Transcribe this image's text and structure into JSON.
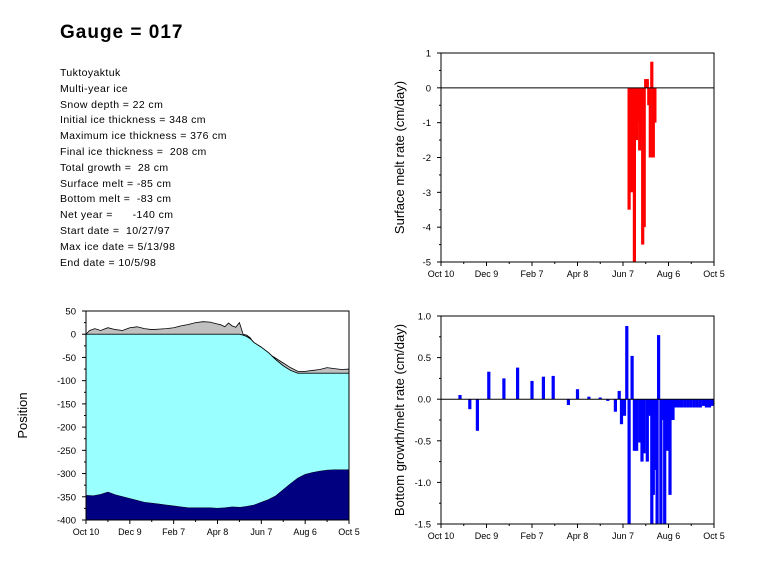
{
  "title": "Gauge = 017",
  "info_lines": [
    "Tuktoyaktuk",
    "Multi-year ice",
    "Snow depth = 22 cm",
    "Initial ice thickness = 348 cm",
    "Maximum ice thickness = 376 cm",
    "Final ice thickness =  208 cm",
    "Total growth =  28 cm",
    "Surface melt = -85 cm",
    "Bottom melt =  -83 cm",
    "Net year =      -140 cm",
    "Start date =  10/27/97",
    "Max ice date = 5/13/98",
    "End date = 10/5/98"
  ],
  "colors": {
    "snow": "#c0c0c0",
    "ice": "#99ffff",
    "water": "#000080",
    "surface_melt": "#ff0000",
    "bottom_rate": "#0000ff"
  },
  "chart_data": [
    {
      "type": "area",
      "ylabel": "Position",
      "xlabel": "",
      "x_ticks": [
        "Oct 10",
        "Dec 9",
        "Feb 7",
        "Apr 8",
        "Jun 7",
        "Aug 6",
        "Oct 5"
      ],
      "x_range": [
        0,
        360
      ],
      "ylim": [
        -400,
        50
      ],
      "y_ticks": [
        "50",
        "0",
        "-50",
        "-100",
        "-150",
        "-200",
        "-250",
        "-300",
        "-350",
        "-400"
      ],
      "series": [
        {
          "role": "snow_surface",
          "x": [
            0,
            5,
            12,
            20,
            30,
            40,
            50,
            60,
            70,
            80,
            90,
            100,
            110,
            120,
            130,
            140,
            150,
            160,
            170,
            175,
            180,
            185,
            190,
            195,
            200,
            205,
            210,
            215,
            220,
            225,
            230,
            240,
            250,
            260,
            270,
            280,
            290,
            300,
            310,
            320,
            330,
            340,
            350,
            360
          ],
          "y": [
            0,
            8,
            12,
            8,
            14,
            10,
            8,
            14,
            16,
            12,
            10,
            11,
            12,
            14,
            18,
            21,
            25,
            27,
            26,
            24,
            22,
            20,
            16,
            24,
            18,
            15,
            25,
            0,
            -2,
            -8,
            -20,
            -30,
            -42,
            -52,
            -62,
            -72,
            -80,
            -80,
            -78,
            -76,
            -72,
            -74,
            -76,
            -75
          ]
        },
        {
          "role": "ice_top",
          "x": [
            0,
            180,
            200,
            210,
            215,
            220,
            225,
            230,
            240,
            250,
            260,
            270,
            280,
            290,
            300,
            310,
            320,
            330,
            340,
            350,
            360
          ],
          "y": [
            0,
            0,
            0,
            0,
            -2,
            -5,
            -10,
            -18,
            -28,
            -40,
            -55,
            -68,
            -78,
            -84,
            -84,
            -84,
            -84,
            -84,
            -84,
            -84,
            -84
          ]
        },
        {
          "role": "ice_bottom",
          "x": [
            0,
            10,
            20,
            30,
            40,
            50,
            60,
            70,
            80,
            90,
            100,
            110,
            120,
            130,
            140,
            150,
            160,
            170,
            180,
            190,
            200,
            210,
            220,
            230,
            240,
            250,
            260,
            270,
            280,
            290,
            300,
            310,
            320,
            330,
            340,
            350,
            360
          ],
          "y": [
            -347,
            -348,
            -345,
            -340,
            -346,
            -350,
            -354,
            -358,
            -362,
            -364,
            -366,
            -368,
            -370,
            -372,
            -374,
            -374,
            -374,
            -374,
            -375,
            -374,
            -372,
            -373,
            -371,
            -368,
            -362,
            -356,
            -348,
            -335,
            -322,
            -310,
            -302,
            -298,
            -295,
            -293,
            -292,
            -292,
            -292
          ]
        }
      ]
    },
    {
      "type": "bar",
      "ylabel": "Surface melt rate (cm/day)",
      "xlabel": "",
      "x_ticks": [
        "Oct 10",
        "Dec 9",
        "Feb 7",
        "Apr 8",
        "Jun 7",
        "Aug 6",
        "Oct 5"
      ],
      "x_range": [
        0,
        360
      ],
      "ylim": [
        -5,
        1
      ],
      "y_ticks": [
        "1",
        "0",
        "-1",
        "-2",
        "-3",
        "-4",
        "-5"
      ],
      "values": [
        [
          248,
          -3.5
        ],
        [
          250,
          -0.5
        ],
        [
          252,
          -3.0
        ],
        [
          253,
          -1.0
        ],
        [
          255,
          -5.0
        ],
        [
          256,
          -0.7
        ],
        [
          258,
          -1.5
        ],
        [
          260,
          -1.0
        ],
        [
          262,
          -1.8
        ],
        [
          264,
          -1.5
        ],
        [
          265,
          -1.5
        ],
        [
          266,
          -4.5
        ],
        [
          268,
          -4.0
        ],
        [
          270,
          0.25
        ],
        [
          272,
          0.25
        ],
        [
          274,
          -0.5
        ],
        [
          276,
          -2.0
        ],
        [
          278,
          0.75
        ],
        [
          280,
          -2.0
        ],
        [
          282,
          -1.0
        ]
      ]
    },
    {
      "type": "bar",
      "ylabel": "Bottom growth/melt rate (cm/day)",
      "xlabel": "",
      "x_ticks": [
        "Oct 10",
        "Dec 9",
        "Feb 7",
        "Apr 8",
        "Jun 7",
        "Aug 6",
        "Oct 5"
      ],
      "x_range": [
        0,
        360
      ],
      "ylim": [
        -1.5,
        1
      ],
      "y_ticks": [
        "1.0",
        "0.5",
        "0.0",
        "-0.5",
        "-1.0",
        "-1.5"
      ],
      "values": [
        [
          25,
          0.05
        ],
        [
          38,
          -0.12
        ],
        [
          48,
          -0.38
        ],
        [
          63,
          0.33
        ],
        [
          83,
          0.25
        ],
        [
          101,
          0.38
        ],
        [
          120,
          0.22
        ],
        [
          135,
          0.27
        ],
        [
          148,
          0.28
        ],
        [
          168,
          -0.07
        ],
        [
          180,
          0.12
        ],
        [
          195,
          0.03
        ],
        [
          210,
          0.02
        ],
        [
          220,
          -0.02
        ],
        [
          230,
          -0.15
        ],
        [
          235,
          0.1
        ],
        [
          238,
          -0.3
        ],
        [
          242,
          -0.2
        ],
        [
          245,
          0.88
        ],
        [
          248,
          -1.5
        ],
        [
          252,
          0.52
        ],
        [
          255,
          -0.62
        ],
        [
          258,
          -0.62
        ],
        [
          262,
          -0.52
        ],
        [
          265,
          -0.75
        ],
        [
          268,
          -0.65
        ],
        [
          272,
          -0.75
        ],
        [
          275,
          -0.2
        ],
        [
          278,
          -1.5
        ],
        [
          280,
          -1.15
        ],
        [
          283,
          -0.85
        ],
        [
          285,
          -1.5
        ],
        [
          287,
          0.77
        ],
        [
          290,
          -1.5
        ],
        [
          292,
          -0.25
        ],
        [
          295,
          -1.5
        ],
        [
          298,
          -0.62
        ],
        [
          302,
          -1.15
        ],
        [
          306,
          -0.25
        ],
        [
          310,
          -0.1
        ],
        [
          314,
          -0.1
        ],
        [
          318,
          -0.1
        ],
        [
          322,
          -0.1
        ],
        [
          326,
          -0.1
        ],
        [
          330,
          -0.1
        ],
        [
          334,
          -0.1
        ],
        [
          338,
          -0.1
        ],
        [
          342,
          -0.1
        ],
        [
          346,
          -0.08
        ],
        [
          350,
          -0.1
        ],
        [
          354,
          -0.1
        ],
        [
          358,
          -0.08
        ]
      ]
    }
  ]
}
